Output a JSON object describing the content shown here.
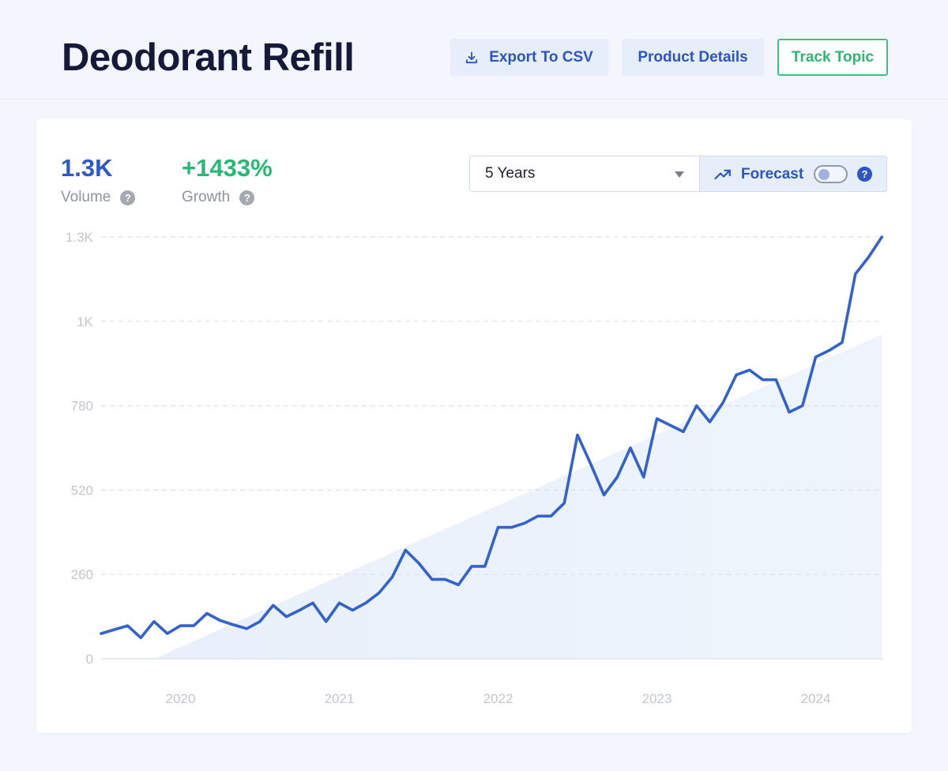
{
  "page": {
    "title": "Deodorant Refill"
  },
  "actions": {
    "export_label": "Export To CSV",
    "details_label": "Product Details",
    "track_label": "Track Topic"
  },
  "metrics": {
    "volume": {
      "value": "1.3K",
      "label": "Volume",
      "color": "#2d58c8"
    },
    "growth": {
      "value": "+1433%",
      "label": "Growth",
      "color": "#27b874"
    }
  },
  "controls": {
    "range_selected": "5 Years",
    "forecast_label": "Forecast",
    "forecast_enabled": false
  },
  "icons": {
    "export": "download-icon",
    "forecast": "trending-up-icon",
    "help": "question-icon"
  },
  "colors": {
    "accent": "#2b55c8",
    "line": "#3262d0",
    "trend_fill": "#e8f0fb",
    "track_green": "#2db872"
  },
  "chart_data": {
    "type": "line",
    "title": "",
    "xlabel": "",
    "ylabel": "",
    "ylim": [
      0,
      1300
    ],
    "y_ticks": [
      {
        "value": 0,
        "label": "0"
      },
      {
        "value": 260,
        "label": "260"
      },
      {
        "value": 520,
        "label": "520"
      },
      {
        "value": 780,
        "label": "780"
      },
      {
        "value": 1040,
        "label": "1K"
      },
      {
        "value": 1300,
        "label": "1.3K"
      }
    ],
    "x_ticks": [
      "2020",
      "2021",
      "2022",
      "2023",
      "2024"
    ],
    "x_start": "2019-07",
    "grid": "horizontal dashed",
    "series": [
      {
        "dates": [
          "2019-07",
          "2019-08",
          "2019-09",
          "2019-10",
          "2019-11",
          "2019-12",
          "2020-01",
          "2020-02",
          "2020-03",
          "2020-04",
          "2020-05",
          "2020-06",
          "2020-07",
          "2020-08",
          "2020-09",
          "2020-10",
          "2020-11",
          "2020-12",
          "2021-01",
          "2021-02",
          "2021-03",
          "2021-04",
          "2021-05",
          "2021-06",
          "2021-07",
          "2021-08",
          "2021-09",
          "2021-10",
          "2021-11",
          "2021-12",
          "2022-01",
          "2022-02",
          "2022-03",
          "2022-04",
          "2022-05",
          "2022-06",
          "2022-07",
          "2022-08",
          "2022-09",
          "2022-10",
          "2022-11",
          "2022-12",
          "2023-01",
          "2023-02",
          "2023-03",
          "2023-04",
          "2023-05",
          "2023-06",
          "2023-07",
          "2023-08",
          "2023-09",
          "2023-10",
          "2023-11",
          "2023-12",
          "2024-01",
          "2024-02",
          "2024-03",
          "2024-04",
          "2024-05",
          "2024-06"
        ],
        "values": [
          78,
          90,
          102,
          65,
          115,
          78,
          102,
          102,
          140,
          118,
          105,
          93,
          115,
          165,
          130,
          150,
          172,
          115,
          172,
          150,
          172,
          203,
          252,
          335,
          295,
          245,
          245,
          228,
          285,
          285,
          405,
          405,
          418,
          440,
          440,
          480,
          690,
          600,
          505,
          560,
          650,
          560,
          740,
          720,
          700,
          780,
          730,
          790,
          875,
          890,
          860,
          860,
          760,
          780,
          930,
          950,
          975,
          1186,
          1238,
          1300
        ]
      }
    ],
    "trend_area": {
      "start": {
        "x": "2019-11",
        "y": 0
      },
      "end": {
        "x": "2024-06",
        "y": 1000
      }
    }
  }
}
